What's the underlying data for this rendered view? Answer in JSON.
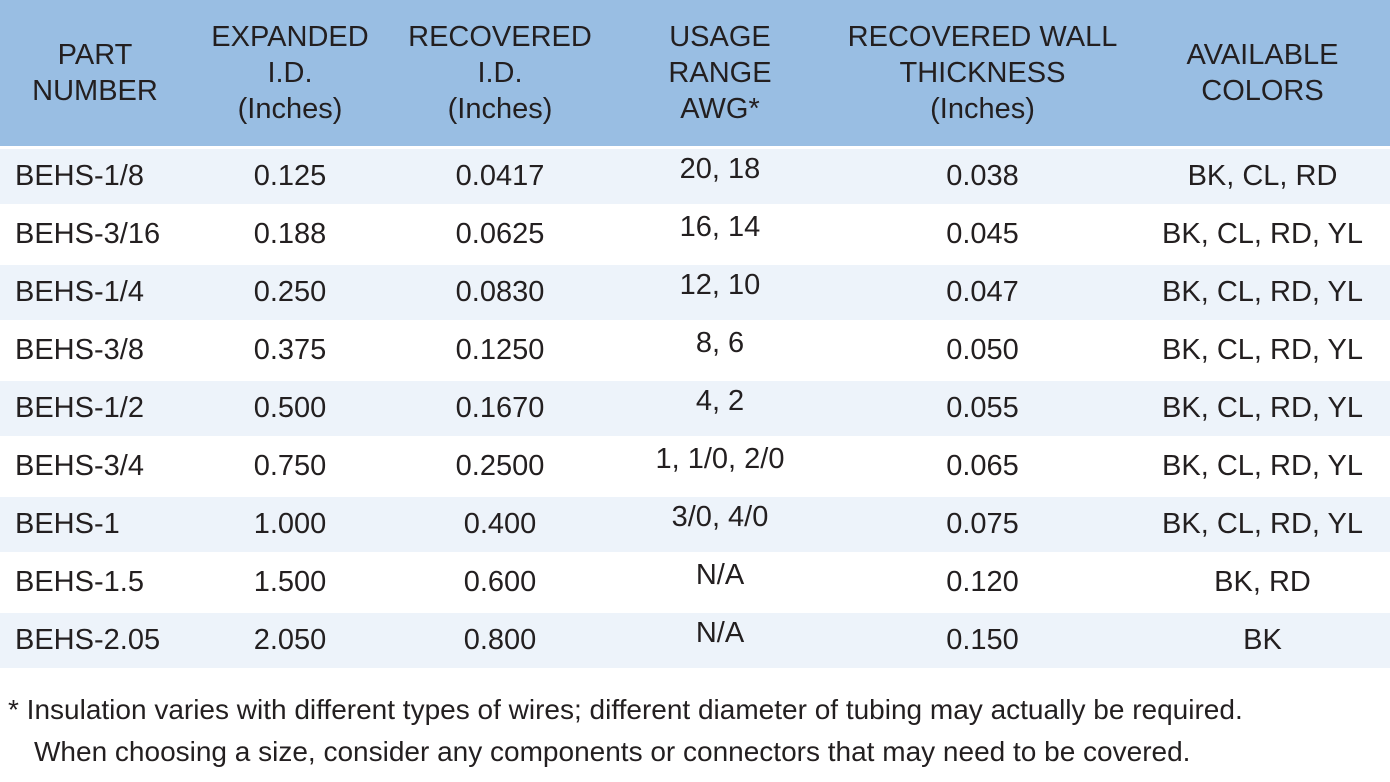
{
  "colors": {
    "header_bg": "#99BEE3",
    "row_alt_bg": "#EDF3FA",
    "row_bg": "#FFFFFF",
    "text": "#231F20"
  },
  "table": {
    "column_keys": [
      "part-number",
      "expanded-id",
      "recovered-id",
      "usage-range",
      "wall-thickness",
      "available-colors"
    ],
    "headers": [
      {
        "label": "PART\nNUMBER"
      },
      {
        "label": "EXPANDED\nI.D.\n(Inches)"
      },
      {
        "label": "RECOVERED\nI.D.\n(Inches)"
      },
      {
        "label": "USAGE\nRANGE\nAWG*"
      },
      {
        "label": "RECOVERED WALL\nTHICKNESS\n(Inches)"
      },
      {
        "label": "AVAILABLE\nCOLORS"
      }
    ],
    "rows": [
      [
        "BEHS-1/8",
        "0.125",
        "0.0417",
        "20, 18",
        "0.038",
        "BK, CL, RD"
      ],
      [
        "BEHS-3/16",
        "0.188",
        "0.0625",
        "16, 14",
        "0.045",
        "BK, CL, RD, YL"
      ],
      [
        "BEHS-1/4",
        "0.250",
        "0.0830",
        "12, 10",
        "0.047",
        "BK, CL, RD, YL"
      ],
      [
        "BEHS-3/8",
        "0.375",
        "0.1250",
        "8, 6",
        "0.050",
        "BK, CL, RD, YL"
      ],
      [
        "BEHS-1/2",
        "0.500",
        "0.1670",
        "4, 2",
        "0.055",
        "BK, CL, RD, YL"
      ],
      [
        "BEHS-3/4",
        "0.750",
        "0.2500",
        "1, 1/0, 2/0",
        "0.065",
        "BK, CL, RD, YL"
      ],
      [
        "BEHS-1",
        "1.000",
        "0.400",
        "3/0, 4/0",
        "0.075",
        "BK, CL, RD, YL"
      ],
      [
        "BEHS-1.5",
        "1.500",
        "0.600",
        "N/A",
        "0.120",
        "BK, RD"
      ],
      [
        "BEHS-2.05",
        "2.050",
        "0.800",
        "N/A",
        "0.150",
        "BK"
      ]
    ]
  },
  "footnote": {
    "text": "* Insulation varies with different types of wires; different diameter of tubing may actually be required.\nWhen choosing a size, consider any components or connectors that may need to be covered."
  }
}
